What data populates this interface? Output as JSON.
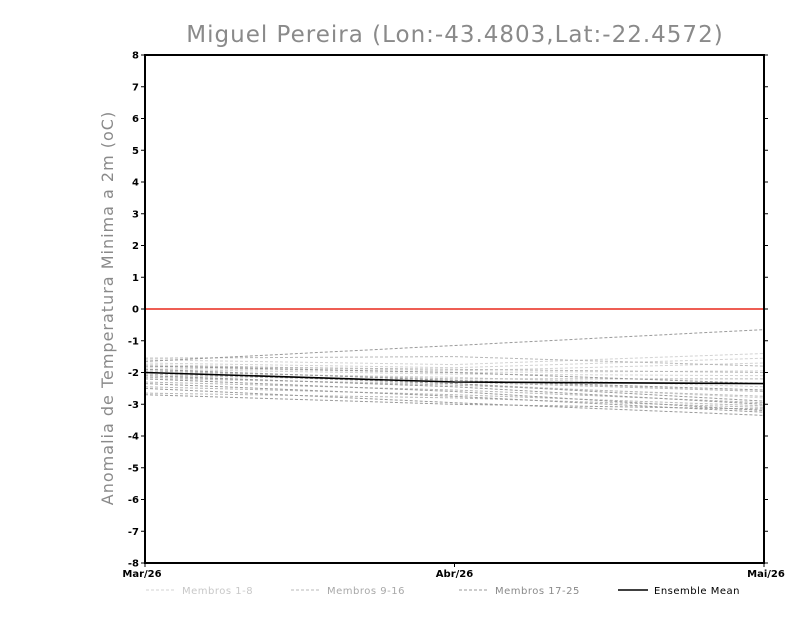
{
  "chart_data": {
    "type": "line",
    "title": "Miguel Pereira (Lon:-43.4803,Lat:-22.4572)",
    "xlabel": "",
    "ylabel": "Anomalia de Temperatura Minima a 2m (oC)",
    "categories": [
      "Mar/26",
      "Abr/26",
      "Mai/26"
    ],
    "ylim": [
      -8,
      8
    ],
    "yticks": [
      8,
      7,
      6,
      5,
      4,
      3,
      2,
      1,
      0,
      -1,
      -2,
      -3,
      -4,
      -5,
      -6,
      -7,
      -8
    ],
    "ytick_labels": [
      "8",
      "7",
      "6",
      "5",
      "4",
      "3",
      "2",
      "1",
      "0",
      "-1",
      "-2",
      "-3",
      "-4",
      "-5",
      "-6",
      "-7",
      "-8"
    ],
    "reference_line": {
      "value": 0,
      "color": "#e8291c"
    },
    "groups": {
      "m1": {
        "color": "#d3d3d3"
      },
      "m2": {
        "color": "#b8b8b8"
      },
      "m3": {
        "color": "#9a9a9a"
      },
      "mean": {
        "color": "#000000"
      }
    },
    "series": [
      {
        "name": "Membros 1-8 #1",
        "group": "m1",
        "values": [
          -1.6,
          -1.75,
          -1.4
        ]
      },
      {
        "name": "Membros 1-8 #2",
        "group": "m1",
        "values": [
          -1.7,
          -1.85,
          -1.55
        ]
      },
      {
        "name": "Membros 1-8 #3",
        "group": "m1",
        "values": [
          -1.75,
          -1.95,
          -1.7
        ]
      },
      {
        "name": "Membros 1-8 #4",
        "group": "m1",
        "values": [
          -1.85,
          -2.0,
          -1.95
        ]
      },
      {
        "name": "Membros 1-8 #5",
        "group": "m1",
        "values": [
          -1.9,
          -2.05,
          -2.1
        ]
      },
      {
        "name": "Membros 1-8 #6",
        "group": "m1",
        "values": [
          -2.0,
          -2.15,
          -2.45
        ]
      },
      {
        "name": "Membros 1-8 #7",
        "group": "m1",
        "values": [
          -2.1,
          -2.25,
          -2.6
        ]
      },
      {
        "name": "Membros 1-8 #8",
        "group": "m1",
        "values": [
          -2.2,
          -2.35,
          -2.8
        ]
      },
      {
        "name": "Membros 9-16 #1",
        "group": "m2",
        "values": [
          -1.55,
          -1.5,
          -1.8
        ]
      },
      {
        "name": "Membros 9-16 #2",
        "group": "m2",
        "values": [
          -1.8,
          -1.9,
          -2.0
        ]
      },
      {
        "name": "Membros 9-16 #3",
        "group": "m2",
        "values": [
          -1.95,
          -2.2,
          -2.2
        ]
      },
      {
        "name": "Membros 9-16 #4",
        "group": "m2",
        "values": [
          -2.05,
          -2.3,
          -2.6
        ]
      },
      {
        "name": "Membros 9-16 #5",
        "group": "m2",
        "values": [
          -2.15,
          -2.4,
          -2.75
        ]
      },
      {
        "name": "Membros 9-16 #6",
        "group": "m2",
        "values": [
          -2.3,
          -2.55,
          -2.95
        ]
      },
      {
        "name": "Membros 9-16 #7",
        "group": "m2",
        "values": [
          -2.45,
          -2.7,
          -3.05
        ]
      },
      {
        "name": "Membros 9-16 #8",
        "group": "m2",
        "values": [
          -2.65,
          -2.8,
          -3.1
        ]
      },
      {
        "name": "Membros 17-25 #1",
        "group": "m3",
        "values": [
          -1.65,
          -1.15,
          -0.65
        ]
      },
      {
        "name": "Membros 17-25 #2",
        "group": "m3",
        "values": [
          -1.8,
          -2.0,
          -2.35
        ]
      },
      {
        "name": "Membros 17-25 #3",
        "group": "m3",
        "values": [
          -1.9,
          -2.25,
          -2.55
        ]
      },
      {
        "name": "Membros 17-25 #4",
        "group": "m3",
        "values": [
          -2.0,
          -2.35,
          -2.9
        ]
      },
      {
        "name": "Membros 17-25 #5",
        "group": "m3",
        "values": [
          -2.1,
          -2.45,
          -3.0
        ]
      },
      {
        "name": "Membros 17-25 #6",
        "group": "m3",
        "values": [
          -2.2,
          -2.6,
          -3.2
        ]
      },
      {
        "name": "Membros 17-25 #7",
        "group": "m3",
        "values": [
          -2.35,
          -2.75,
          -3.25
        ]
      },
      {
        "name": "Membros 17-25 #8",
        "group": "m3",
        "values": [
          -2.5,
          -2.95,
          -3.35
        ]
      },
      {
        "name": "Membros 17-25 #9",
        "group": "m3",
        "values": [
          -2.7,
          -3.0,
          -3.15
        ]
      },
      {
        "name": "Ensemble Mean",
        "group": "mean",
        "values": [
          -2.0,
          -2.3,
          -2.35
        ]
      }
    ],
    "legend": [
      {
        "label": "Membros 1-8",
        "group": "m1",
        "text_color": "#c8c8c8"
      },
      {
        "label": "Membros 9-16",
        "group": "m2",
        "text_color": "#a8a8a8"
      },
      {
        "label": "Membros 17-25",
        "group": "m3",
        "text_color": "#8a8a8a"
      },
      {
        "label": "Ensemble Mean",
        "group": "mean",
        "text_color": "#000000"
      }
    ],
    "legend_position": "bottom"
  }
}
